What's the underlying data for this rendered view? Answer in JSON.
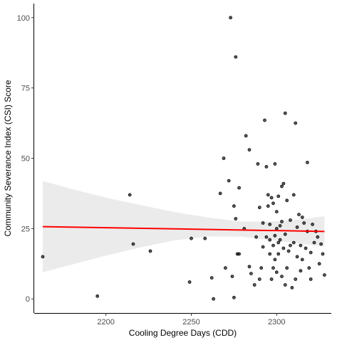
{
  "chart_data": {
    "type": "scatter",
    "title": "",
    "xlabel": "Cooling Degree Days (CDD)",
    "ylabel": "Community Severance Index (CSI) Score",
    "xlim": [
      2158,
      2332
    ],
    "ylim": [
      -5,
      105
    ],
    "x_ticks": [
      2200,
      2250,
      2300
    ],
    "y_ticks": [
      0,
      25,
      50,
      75,
      100
    ],
    "grid": false,
    "legend": "none",
    "colors": {
      "points": "#000000",
      "fit_line": "#ff0000",
      "confidence_band": "#ebebeb"
    },
    "points": [
      [
        2163,
        15
      ],
      [
        2195,
        1
      ],
      [
        2214,
        37
      ],
      [
        2216,
        19.5
      ],
      [
        2226,
        17
      ],
      [
        2249,
        6
      ],
      [
        2250,
        21.5
      ],
      [
        2258,
        21.5
      ],
      [
        2262,
        7.5
      ],
      [
        2263,
        0
      ],
      [
        2267,
        37.5
      ],
      [
        2269,
        50
      ],
      [
        2270,
        11
      ],
      [
        2272,
        42
      ],
      [
        2273,
        100
      ],
      [
        2274,
        8
      ],
      [
        2275,
        0.5
      ],
      [
        2275,
        33
      ],
      [
        2276,
        86
      ],
      [
        2276,
        28.5
      ],
      [
        2277,
        16
      ],
      [
        2278,
        16
      ],
      [
        2278,
        39.5
      ],
      [
        2281,
        25
      ],
      [
        2282,
        58
      ],
      [
        2284,
        11.5
      ],
      [
        2284,
        53
      ],
      [
        2285,
        9
      ],
      [
        2287,
        5
      ],
      [
        2288,
        22
      ],
      [
        2289,
        48
      ],
      [
        2290,
        7
      ],
      [
        2290,
        32.5
      ],
      [
        2291,
        11
      ],
      [
        2292,
        18.5
      ],
      [
        2292,
        27
      ],
      [
        2293,
        63.5
      ],
      [
        2294,
        22
      ],
      [
        2294,
        47
      ],
      [
        2295,
        37
      ],
      [
        2295,
        33
      ],
      [
        2296,
        26.5
      ],
      [
        2296,
        21
      ],
      [
        2296,
        16
      ],
      [
        2297,
        36
      ],
      [
        2297,
        7
      ],
      [
        2298,
        11
      ],
      [
        2298,
        19
      ],
      [
        2298,
        34
      ],
      [
        2299,
        48
      ],
      [
        2299,
        14
      ],
      [
        2299,
        22.5
      ],
      [
        2300,
        31
      ],
      [
        2300,
        9.5
      ],
      [
        2300,
        25
      ],
      [
        2301,
        20
      ],
      [
        2301,
        16
      ],
      [
        2301,
        36.5
      ],
      [
        2302,
        21
      ],
      [
        2302,
        26
      ],
      [
        2303,
        40
      ],
      [
        2303,
        8
      ],
      [
        2303,
        27.5
      ],
      [
        2304,
        18
      ],
      [
        2304,
        41
      ],
      [
        2305,
        66
      ],
      [
        2305,
        23
      ],
      [
        2305,
        5
      ],
      [
        2306,
        11
      ],
      [
        2306,
        35
      ],
      [
        2307,
        17
      ],
      [
        2308,
        28
      ],
      [
        2308,
        19
      ],
      [
        2309,
        4
      ],
      [
        2310,
        37
      ],
      [
        2310,
        20
      ],
      [
        2311,
        62.5
      ],
      [
        2311,
        7
      ],
      [
        2312,
        25.5
      ],
      [
        2312,
        15
      ],
      [
        2313,
        30
      ],
      [
        2314,
        19
      ],
      [
        2314,
        10
      ],
      [
        2315,
        29
      ],
      [
        2315,
        14
      ],
      [
        2316,
        27
      ],
      [
        2317,
        18
      ],
      [
        2318,
        48.5
      ],
      [
        2318,
        24
      ],
      [
        2319,
        11
      ],
      [
        2320,
        16.5
      ],
      [
        2320,
        7
      ],
      [
        2321,
        26.5
      ],
      [
        2322,
        20
      ],
      [
        2323,
        24
      ],
      [
        2324,
        22
      ],
      [
        2325,
        12.5
      ],
      [
        2326,
        19.5
      ],
      [
        2327,
        16
      ],
      [
        2328,
        8.5
      ]
    ],
    "fit_line": {
      "x": [
        2163,
        2328
      ],
      "y": [
        25.7,
        24.0
      ]
    },
    "confidence_band": {
      "x": [
        2163,
        2180,
        2200,
        2220,
        2240,
        2260,
        2280,
        2295,
        2305,
        2315,
        2328
      ],
      "lower": [
        9.5,
        12.2,
        15.4,
        18.3,
        20.8,
        22.2,
        22.1,
        21.0,
        20.3,
        19.6,
        18.6
      ],
      "upper": [
        41.9,
        39.1,
        36.0,
        33.4,
        30.9,
        28.9,
        27.5,
        27.5,
        27.8,
        28.3,
        29.4
      ]
    }
  }
}
